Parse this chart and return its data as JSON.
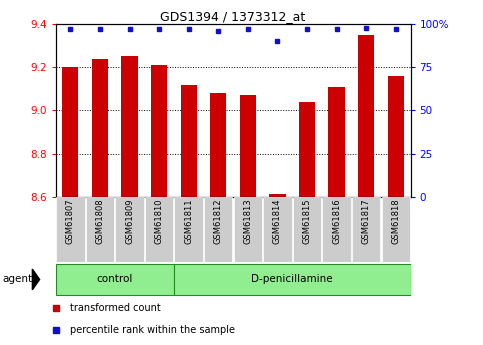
{
  "title": "GDS1394 / 1373312_at",
  "samples": [
    "GSM61807",
    "GSM61808",
    "GSM61809",
    "GSM61810",
    "GSM61811",
    "GSM61812",
    "GSM61813",
    "GSM61814",
    "GSM61815",
    "GSM61816",
    "GSM61817",
    "GSM61818"
  ],
  "bar_values": [
    9.2,
    9.24,
    9.25,
    9.21,
    9.12,
    9.08,
    9.07,
    8.61,
    9.04,
    9.11,
    9.35,
    9.16
  ],
  "percentile_values": [
    97,
    97,
    97,
    97,
    97,
    96,
    97,
    90,
    97,
    97,
    98,
    97
  ],
  "ylim_left": [
    8.6,
    9.4
  ],
  "ylim_right": [
    0,
    100
  ],
  "yticks_left": [
    8.6,
    8.8,
    9.0,
    9.2,
    9.4
  ],
  "yticks_right": [
    0,
    25,
    50,
    75,
    100
  ],
  "bar_color": "#cc0000",
  "percentile_color": "#1010cc",
  "grid_color": "#000000",
  "background_color": "#ffffff",
  "plot_bg_color": "#ffffff",
  "tick_bg_color": "#cccccc",
  "group_color": "#90ee90",
  "group_edge_color": "#228B22",
  "groups": [
    {
      "label": "control",
      "start": 0,
      "end": 3
    },
    {
      "label": "D-penicillamine",
      "start": 4,
      "end": 11
    }
  ],
  "legend_items": [
    {
      "color": "#cc0000",
      "label": "transformed count"
    },
    {
      "color": "#1010cc",
      "label": "percentile rank within the sample"
    }
  ]
}
